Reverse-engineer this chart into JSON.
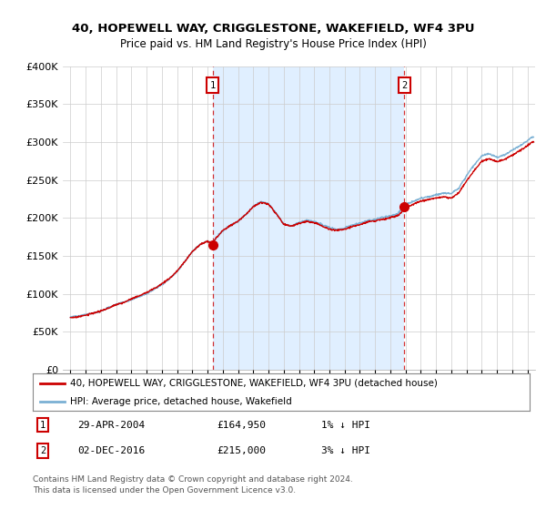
{
  "title": "40, HOPEWELL WAY, CRIGGLESTONE, WAKEFIELD, WF4 3PU",
  "subtitle": "Price paid vs. HM Land Registry's House Price Index (HPI)",
  "sale1_date": "29-APR-2004",
  "sale1_price": 164950,
  "sale2_date": "02-DEC-2016",
  "sale2_price": 215000,
  "legend_line1": "40, HOPEWELL WAY, CRIGGLESTONE, WAKEFIELD, WF4 3PU (detached house)",
  "legend_line2": "HPI: Average price, detached house, Wakefield",
  "footnote1": "Contains HM Land Registry data © Crown copyright and database right 2024.",
  "footnote2": "This data is licensed under the Open Government Licence v3.0.",
  "line_color_red": "#cc0000",
  "line_color_blue": "#7ab0d4",
  "shade_color": "#ddeeff",
  "background_color": "#ffffff",
  "grid_color": "#cccccc",
  "ylim_max": 400000,
  "xlim_start": 1994.5,
  "xlim_end": 2025.5,
  "sale1_year": 2004.33,
  "sale2_year": 2016.92
}
